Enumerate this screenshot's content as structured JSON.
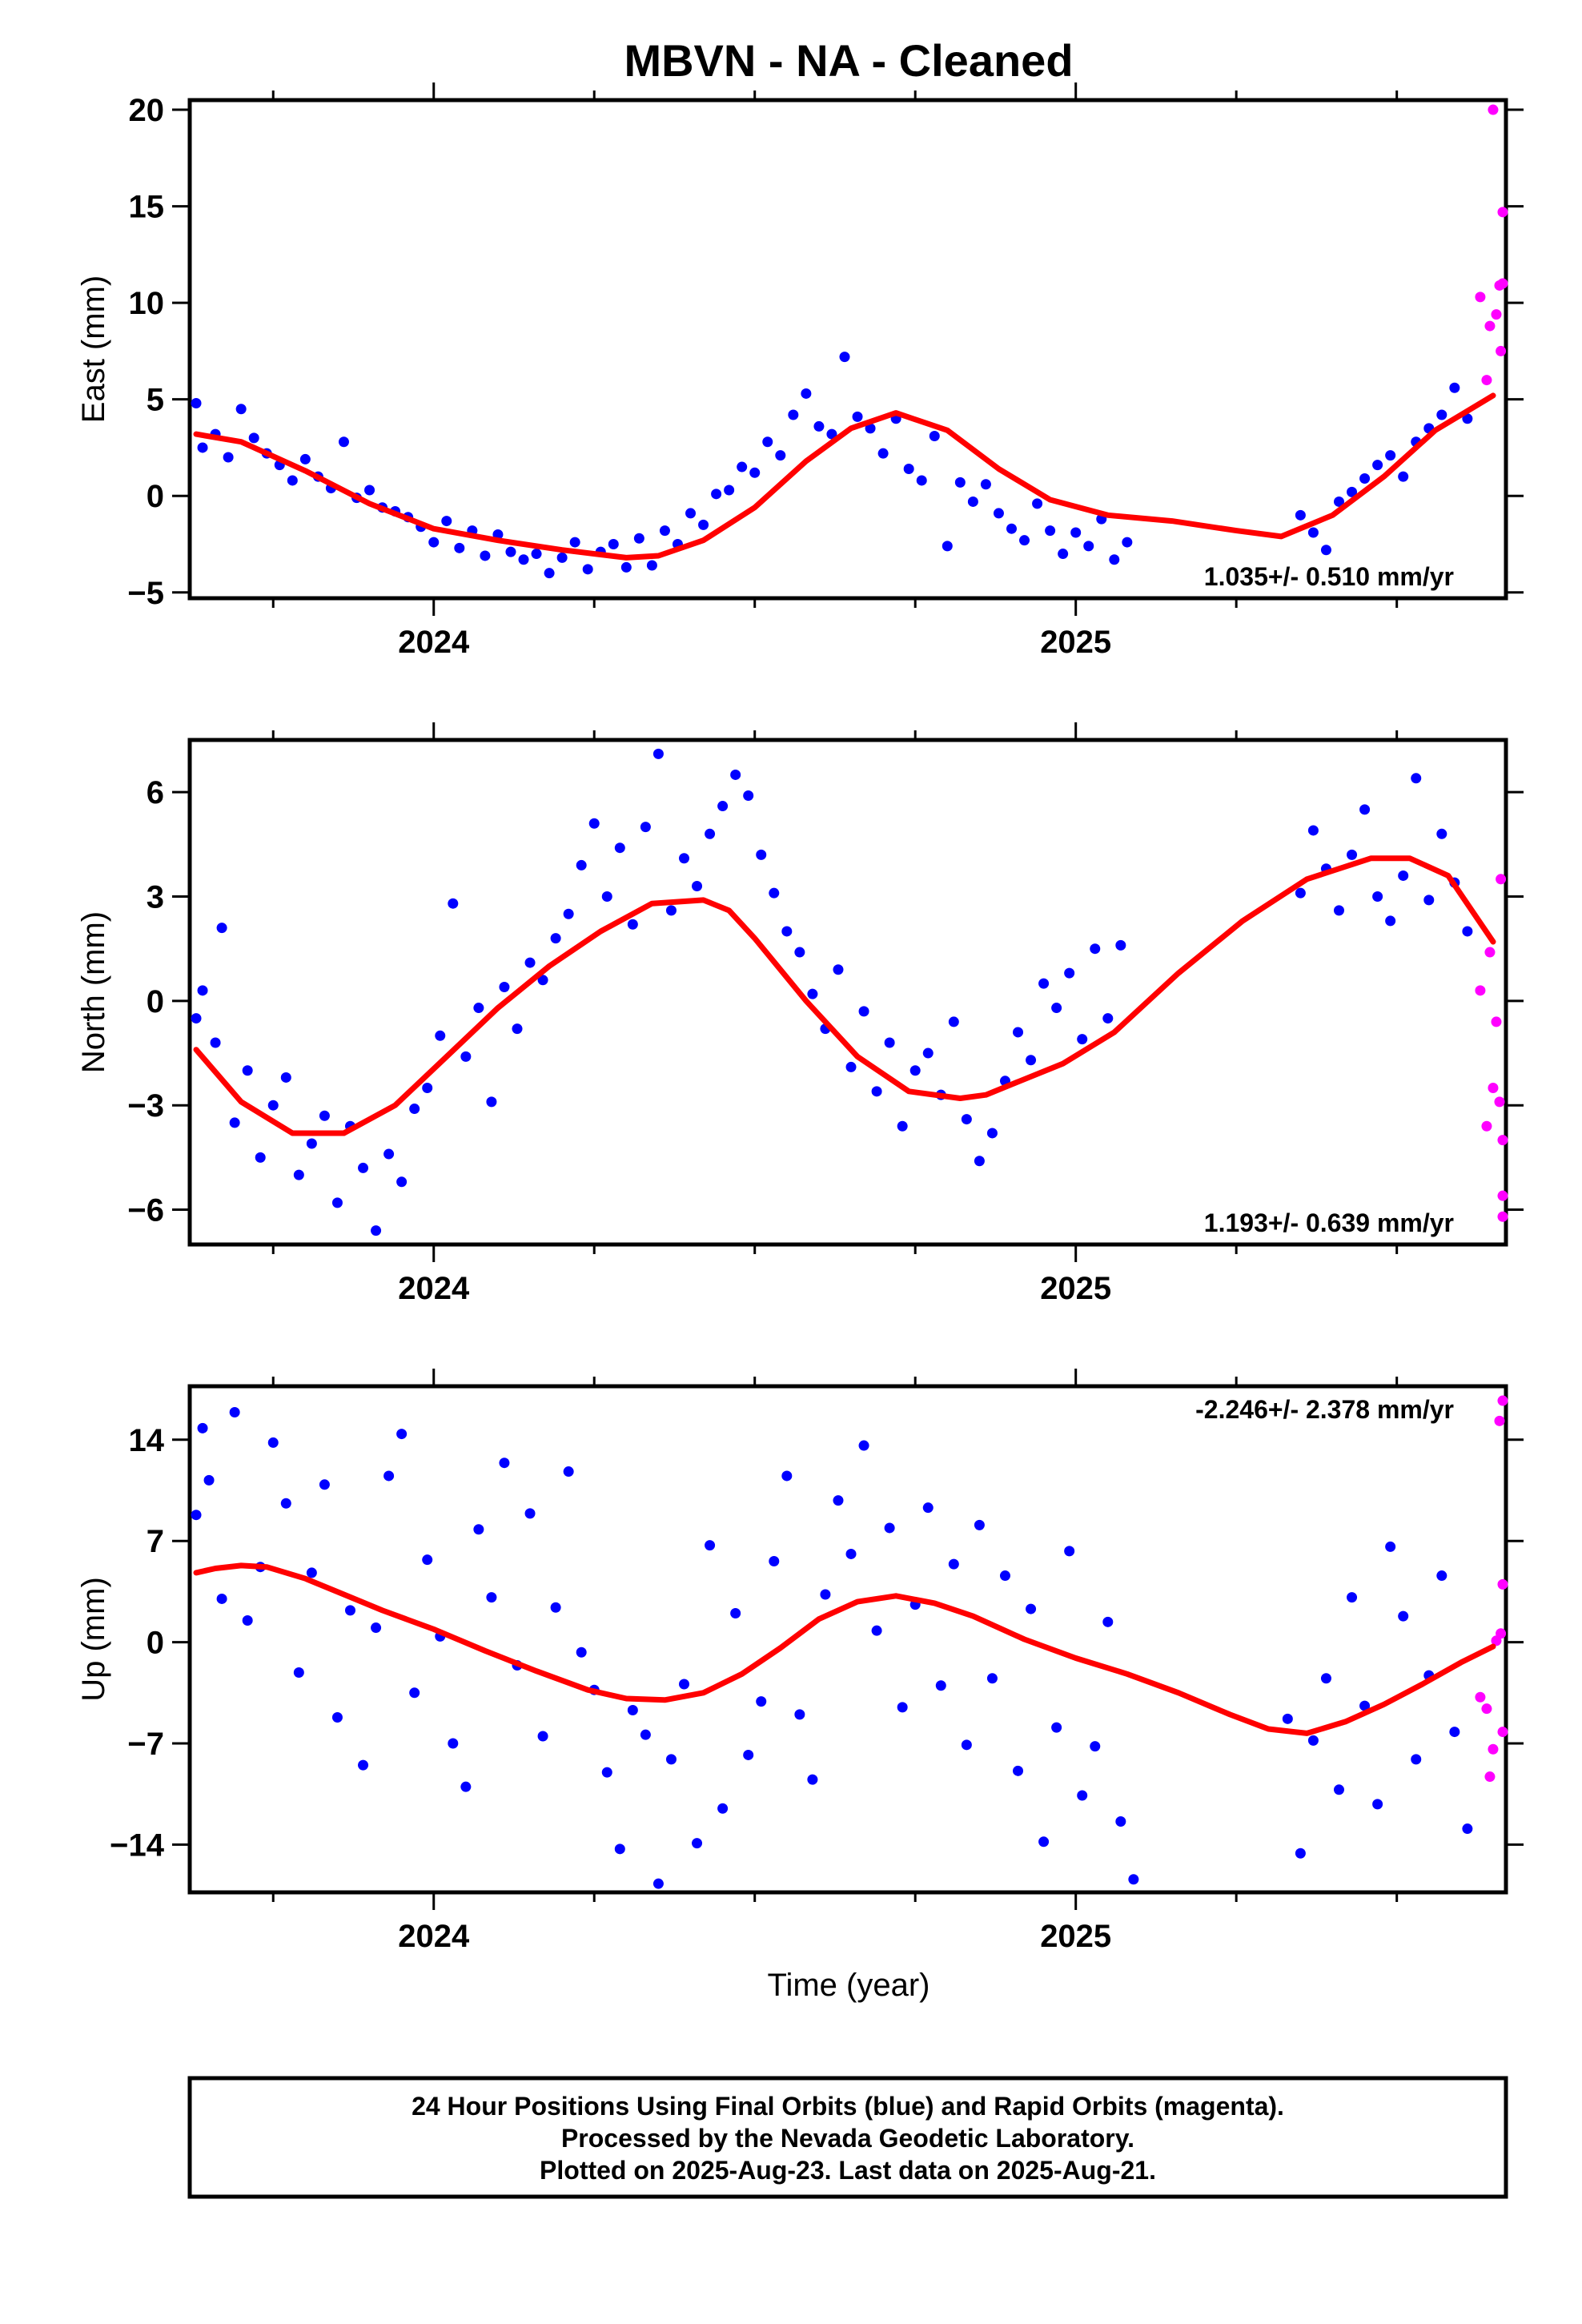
{
  "title": "MBVN  - NA - Cleaned",
  "xlabel": "Time (year)",
  "footer": {
    "line1": "24 Hour Positions Using Final Orbits (blue) and Rapid Orbits (magenta).",
    "line2": "Processed by the Nevada Geodetic Laboratory.",
    "line3": "Plotted on 2025-Aug-23. Last data on 2025-Aug-21."
  },
  "colors": {
    "final": "#0000ff",
    "rapid": "#ff00ff",
    "model": "#ff0000",
    "frame": "#000000"
  },
  "chart_data": [
    {
      "type": "scatter",
      "id": "east",
      "ylabel": "East (mm)",
      "rate": "1.035+/- 0.510 mm/yr",
      "xlim": [
        2023.62,
        2025.67
      ],
      "ylim": [
        -5.3,
        20.5
      ],
      "yticks": [
        20,
        15,
        10,
        5,
        0,
        -5
      ],
      "xticks": [
        2024,
        2025
      ],
      "final": {
        "x": [
          2023.63,
          2023.64,
          2023.66,
          2023.68,
          2023.7,
          2023.72,
          2023.74,
          2023.76,
          2023.78,
          2023.8,
          2023.82,
          2023.84,
          2023.86,
          2023.88,
          2023.9,
          2023.92,
          2023.94,
          2023.96,
          2023.98,
          2024.0,
          2024.02,
          2024.04,
          2024.06,
          2024.08,
          2024.1,
          2024.12,
          2024.14,
          2024.16,
          2024.18,
          2024.2,
          2024.22,
          2024.24,
          2024.26,
          2024.28,
          2024.3,
          2024.32,
          2024.34,
          2024.36,
          2024.38,
          2024.4,
          2024.42,
          2024.44,
          2024.46,
          2024.48,
          2024.5,
          2024.52,
          2024.54,
          2024.56,
          2024.58,
          2024.6,
          2024.62,
          2024.64,
          2024.66,
          2024.68,
          2024.7,
          2024.72,
          2024.74,
          2024.76,
          2024.78,
          2024.8,
          2024.82,
          2024.84,
          2024.86,
          2024.88,
          2024.9,
          2024.92,
          2024.94,
          2024.96,
          2024.98,
          2025.0,
          2025.02,
          2025.04,
          2025.06,
          2025.08,
          2025.35,
          2025.37,
          2025.39,
          2025.41,
          2025.43,
          2025.45,
          2025.47,
          2025.49,
          2025.51,
          2025.53,
          2025.55,
          2025.57,
          2025.59,
          2025.61
        ],
        "y": [
          4.8,
          2.5,
          3.2,
          2.0,
          4.5,
          3.0,
          2.2,
          1.6,
          0.8,
          1.9,
          1.0,
          0.4,
          2.8,
          -0.1,
          0.3,
          -0.6,
          -0.8,
          -1.1,
          -1.6,
          -2.4,
          -1.3,
          -2.7,
          -1.8,
          -3.1,
          -2.0,
          -2.9,
          -3.3,
          -3.0,
          -4.0,
          -3.2,
          -2.4,
          -3.8,
          -2.9,
          -2.5,
          -3.7,
          -2.2,
          -3.6,
          -1.8,
          -2.5,
          -0.9,
          -1.5,
          0.1,
          0.3,
          1.5,
          1.2,
          2.8,
          2.1,
          4.2,
          5.3,
          3.6,
          3.2,
          7.2,
          4.1,
          3.5,
          2.2,
          4.0,
          1.4,
          0.8,
          3.1,
          -2.6,
          0.7,
          -0.3,
          0.6,
          -0.9,
          -1.7,
          -2.3,
          -0.4,
          -1.8,
          -3.0,
          -1.9,
          -2.6,
          -1.2,
          -3.3,
          -2.4,
          -1.0,
          -1.9,
          -2.8,
          -0.3,
          0.2,
          0.9,
          1.6,
          2.1,
          1.0,
          2.8,
          3.5,
          4.2,
          5.6,
          4.0
        ]
      },
      "rapid": {
        "x": [
          2025.63,
          2025.64,
          2025.645,
          2025.65,
          2025.655,
          2025.66,
          2025.662,
          2025.665,
          2025.668
        ],
        "y": [
          10.3,
          6.0,
          8.8,
          20.0,
          9.4,
          10.9,
          7.5,
          14.7,
          11.0
        ]
      },
      "model": {
        "x": [
          2023.63,
          2023.7,
          2023.8,
          2023.9,
          2024.0,
          2024.1,
          2024.2,
          2024.3,
          2024.35,
          2024.42,
          2024.5,
          2024.58,
          2024.65,
          2024.72,
          2024.8,
          2024.88,
          2024.96,
          2025.05,
          2025.15,
          2025.25,
          2025.32,
          2025.4,
          2025.48,
          2025.56,
          2025.65
        ],
        "y": [
          3.2,
          2.8,
          1.3,
          -0.4,
          -1.7,
          -2.3,
          -2.8,
          -3.2,
          -3.1,
          -2.3,
          -0.6,
          1.8,
          3.5,
          4.3,
          3.4,
          1.4,
          -0.2,
          -1.0,
          -1.3,
          -1.8,
          -2.1,
          -1.0,
          1.0,
          3.4,
          5.2
        ]
      }
    },
    {
      "type": "scatter",
      "id": "north",
      "ylabel": "North (mm)",
      "rate": "1.193+/- 0.639 mm/yr",
      "xlim": [
        2023.62,
        2025.67
      ],
      "ylim": [
        -7,
        7.5
      ],
      "yticks": [
        6,
        3,
        0,
        -3,
        -6
      ],
      "xticks": [
        2024,
        2025
      ],
      "final": {
        "x": [
          2023.63,
          2023.64,
          2023.66,
          2023.67,
          2023.69,
          2023.71,
          2023.73,
          2023.75,
          2023.77,
          2023.79,
          2023.81,
          2023.83,
          2023.85,
          2023.87,
          2023.89,
          2023.91,
          2023.93,
          2023.95,
          2023.97,
          2023.99,
          2024.01,
          2024.03,
          2024.05,
          2024.07,
          2024.09,
          2024.11,
          2024.13,
          2024.15,
          2024.17,
          2024.19,
          2024.21,
          2024.23,
          2024.25,
          2024.27,
          2024.29,
          2024.31,
          2024.33,
          2024.35,
          2024.37,
          2024.39,
          2024.41,
          2024.43,
          2024.45,
          2024.47,
          2024.49,
          2024.51,
          2024.53,
          2024.55,
          2024.57,
          2024.59,
          2024.61,
          2024.63,
          2024.65,
          2024.67,
          2024.69,
          2024.71,
          2024.73,
          2024.75,
          2024.77,
          2024.79,
          2024.81,
          2024.83,
          2024.85,
          2024.87,
          2024.89,
          2024.91,
          2024.93,
          2024.95,
          2024.97,
          2024.99,
          2025.01,
          2025.03,
          2025.05,
          2025.07,
          2025.35,
          2025.37,
          2025.39,
          2025.41,
          2025.43,
          2025.45,
          2025.47,
          2025.49,
          2025.51,
          2025.53,
          2025.55,
          2025.57,
          2025.59,
          2025.61
        ],
        "y": [
          -0.5,
          0.3,
          -1.2,
          2.1,
          -3.5,
          -2.0,
          -4.5,
          -3.0,
          -2.2,
          -5.0,
          -4.1,
          -3.3,
          -5.8,
          -3.6,
          -4.8,
          -6.6,
          -4.4,
          -5.2,
          -3.1,
          -2.5,
          -1.0,
          2.8,
          -1.6,
          -0.2,
          -2.9,
          0.4,
          -0.8,
          1.1,
          0.6,
          1.8,
          2.5,
          3.9,
          5.1,
          3.0,
          4.4,
          2.2,
          5.0,
          7.1,
          2.6,
          4.1,
          3.3,
          4.8,
          5.6,
          6.5,
          5.9,
          4.2,
          3.1,
          2.0,
          1.4,
          0.2,
          -0.8,
          0.9,
          -1.9,
          -0.3,
          -2.6,
          -1.2,
          -3.6,
          -2.0,
          -1.5,
          -2.7,
          -0.6,
          -3.4,
          -4.6,
          -3.8,
          -2.3,
          -0.9,
          -1.7,
          0.5,
          -0.2,
          0.8,
          -1.1,
          1.5,
          -0.5,
          1.6,
          3.1,
          4.9,
          3.8,
          2.6,
          4.2,
          5.5,
          3.0,
          2.3,
          3.6,
          6.4,
          2.9,
          4.8,
          3.4,
          2.0
        ]
      },
      "rapid": {
        "x": [
          2025.63,
          2025.64,
          2025.645,
          2025.65,
          2025.655,
          2025.66,
          2025.662,
          2025.665,
          2025.668,
          2025.67
        ],
        "y": [
          0.3,
          -3.6,
          1.4,
          -2.5,
          -0.6,
          -2.9,
          3.5,
          -5.6,
          -4.0,
          -6.2
        ]
      },
      "model": {
        "x": [
          2023.63,
          2023.7,
          2023.78,
          2023.86,
          2023.94,
          2024.02,
          2024.1,
          2024.18,
          2024.26,
          2024.34,
          2024.42,
          2024.46,
          2024.5,
          2024.58,
          2024.66,
          2024.74,
          2024.82,
          2024.86,
          2024.9,
          2024.98,
          2025.06,
          2025.16,
          2025.26,
          2025.36,
          2025.46,
          2025.52,
          2025.58,
          2025.65
        ],
        "y": [
          -1.4,
          -2.9,
          -3.8,
          -3.8,
          -3.0,
          -1.6,
          -0.2,
          1.0,
          2.0,
          2.8,
          2.9,
          2.6,
          1.8,
          0.0,
          -1.6,
          -2.6,
          -2.8,
          -2.7,
          -2.4,
          -1.8,
          -0.9,
          0.8,
          2.3,
          3.5,
          4.1,
          4.1,
          3.6,
          1.7
        ]
      }
    },
    {
      "type": "scatter",
      "id": "up",
      "ylabel": "Up (mm)",
      "rate": "-2.246+/- 2.378 mm/yr",
      "xlim": [
        2023.62,
        2025.67
      ],
      "ylim": [
        -17.3,
        17.7
      ],
      "yticks": [
        14,
        7,
        0,
        -7,
        -14
      ],
      "xticks": [
        2024,
        2025
      ],
      "final": {
        "x": [
          2023.63,
          2023.64,
          2023.65,
          2023.67,
          2023.69,
          2023.71,
          2023.73,
          2023.75,
          2023.77,
          2023.79,
          2023.81,
          2023.83,
          2023.85,
          2023.87,
          2023.89,
          2023.91,
          2023.93,
          2023.95,
          2023.97,
          2023.99,
          2024.01,
          2024.03,
          2024.05,
          2024.07,
          2024.09,
          2024.11,
          2024.13,
          2024.15,
          2024.17,
          2024.19,
          2024.21,
          2024.23,
          2024.25,
          2024.27,
          2024.29,
          2024.31,
          2024.33,
          2024.35,
          2024.37,
          2024.39,
          2024.41,
          2024.43,
          2024.45,
          2024.47,
          2024.49,
          2024.51,
          2024.53,
          2024.55,
          2024.57,
          2024.59,
          2024.61,
          2024.63,
          2024.65,
          2024.67,
          2024.69,
          2024.71,
          2024.73,
          2024.75,
          2024.77,
          2024.79,
          2024.81,
          2024.83,
          2024.85,
          2024.87,
          2024.89,
          2024.91,
          2024.93,
          2024.95,
          2024.97,
          2024.99,
          2025.01,
          2025.03,
          2025.05,
          2025.07,
          2025.09,
          2025.33,
          2025.35,
          2025.37,
          2025.39,
          2025.41,
          2025.43,
          2025.45,
          2025.47,
          2025.49,
          2025.51,
          2025.53,
          2025.55,
          2025.57,
          2025.59,
          2025.61
        ],
        "y": [
          8.8,
          14.8,
          11.2,
          3.0,
          15.9,
          1.5,
          5.2,
          13.8,
          9.6,
          -2.1,
          4.8,
          10.9,
          -5.2,
          2.2,
          -8.5,
          1.0,
          11.5,
          14.4,
          -3.5,
          5.7,
          0.4,
          -7.0,
          -10.0,
          7.8,
          3.1,
          12.4,
          -1.6,
          8.9,
          -6.5,
          2.4,
          11.8,
          -0.7,
          -3.3,
          -9.0,
          -14.3,
          -4.7,
          -6.4,
          -16.7,
          -8.1,
          -2.9,
          -13.9,
          6.7,
          -11.5,
          2.0,
          -7.8,
          -4.1,
          5.6,
          11.5,
          -5.0,
          -9.5,
          3.3,
          9.8,
          6.1,
          13.6,
          0.8,
          7.9,
          -4.5,
          2.6,
          9.3,
          -3.0,
          5.4,
          -7.1,
          8.1,
          -2.5,
          4.6,
          -8.9,
          2.3,
          -13.8,
          -5.9,
          6.3,
          -10.6,
          -7.2,
          1.4,
          -12.4,
          -16.4,
          -5.3,
          -14.6,
          -6.8,
          -2.5,
          -10.2,
          3.1,
          -4.4,
          -11.2,
          6.6,
          1.8,
          -8.1,
          -2.3,
          4.6,
          -6.2,
          -12.9
        ]
      },
      "rapid": {
        "x": [
          2025.63,
          2025.64,
          2025.645,
          2025.65,
          2025.655,
          2025.66,
          2025.662,
          2025.665,
          2025.668,
          2025.67
        ],
        "y": [
          -3.8,
          -4.6,
          -9.3,
          -7.4,
          0.1,
          15.3,
          0.6,
          16.7,
          -6.2,
          4.0
        ]
      },
      "model": {
        "x": [
          2023.63,
          2023.66,
          2023.7,
          2023.74,
          2023.8,
          2023.86,
          2023.92,
          2024.0,
          2024.08,
          2024.16,
          2024.24,
          2024.3,
          2024.36,
          2024.42,
          2024.48,
          2024.54,
          2024.6,
          2024.66,
          2024.72,
          2024.78,
          2024.84,
          2024.92,
          2025.0,
          2025.08,
          2025.16,
          2025.24,
          2025.3,
          2025.36,
          2025.42,
          2025.48,
          2025.54,
          2025.6,
          2025.65
        ],
        "y": [
          4.8,
          5.1,
          5.3,
          5.2,
          4.4,
          3.3,
          2.2,
          0.9,
          -0.6,
          -2.0,
          -3.3,
          -3.9,
          -4.0,
          -3.5,
          -2.2,
          -0.4,
          1.6,
          2.8,
          3.2,
          2.7,
          1.8,
          0.2,
          -1.1,
          -2.2,
          -3.5,
          -5.0,
          -6.0,
          -6.3,
          -5.5,
          -4.3,
          -2.9,
          -1.4,
          -0.3
        ]
      }
    }
  ]
}
